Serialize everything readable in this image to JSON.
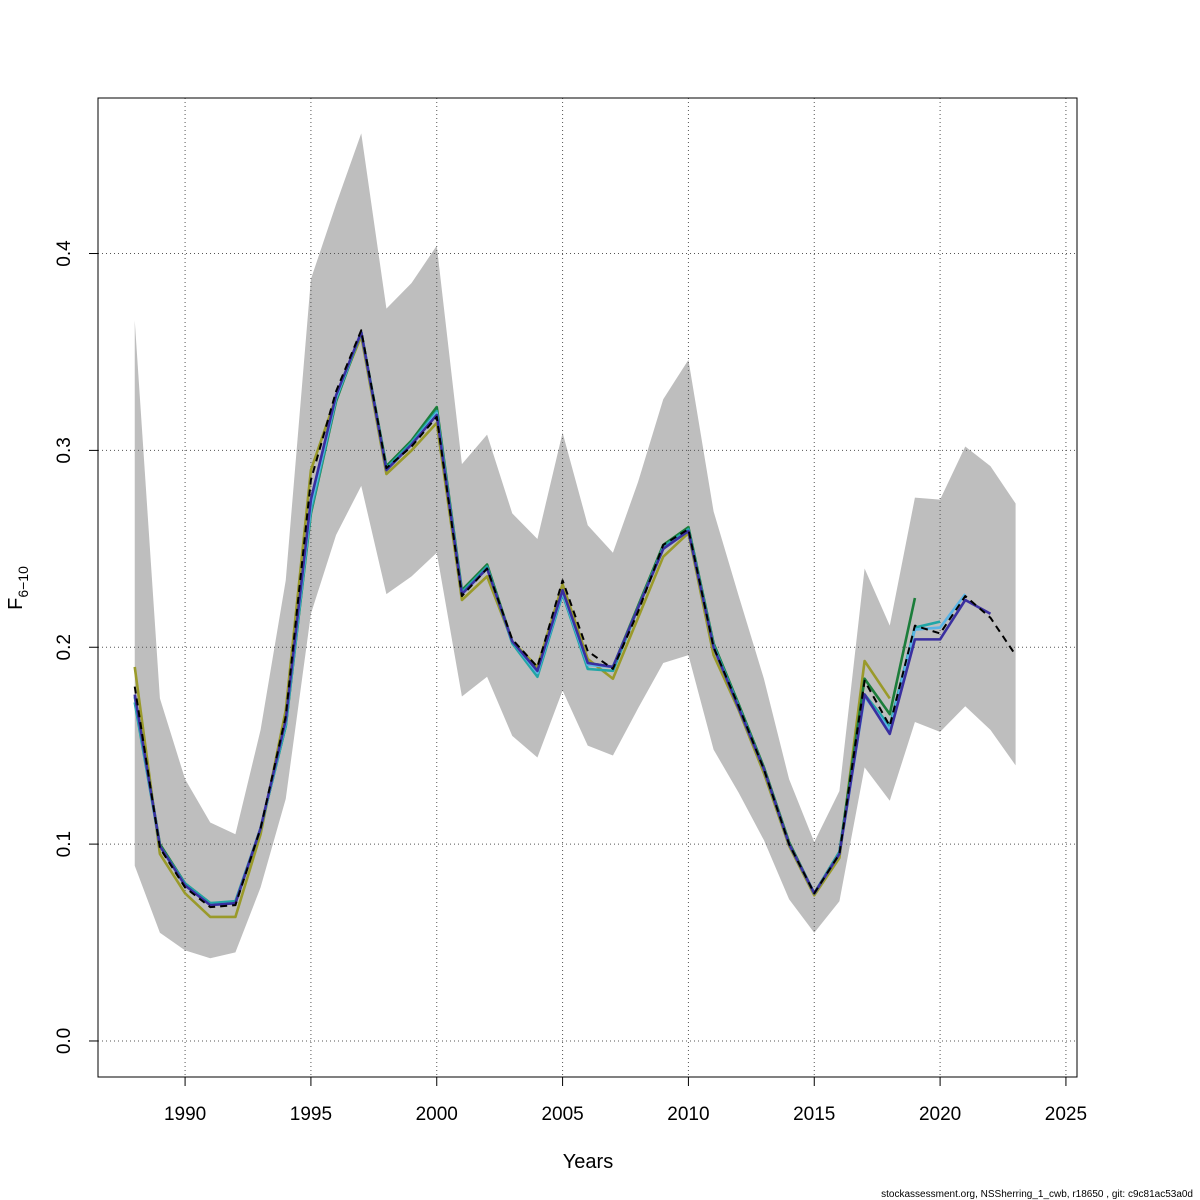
{
  "chart_data": {
    "type": "line",
    "xlabel": "Years",
    "ylabel": "F",
    "ylabel_sub": "6−10",
    "footer": "stockassessment.org, NSSherring_1_cwb, r18650 , git: c9c81ac53a0d",
    "x": [
      1988,
      1989,
      1990,
      1991,
      1992,
      1993,
      1994,
      1995,
      1996,
      1997,
      1998,
      1999,
      2000,
      2001,
      2002,
      2003,
      2004,
      2005,
      2006,
      2007,
      2008,
      2009,
      2010,
      2011,
      2012,
      2013,
      2014,
      2015,
      2016,
      2017,
      2018,
      2019,
      2020,
      2021,
      2022,
      2023
    ],
    "xlim": [
      1986.54,
      2025.44
    ],
    "ylim": [
      -0.0183,
      0.479
    ],
    "xticks": [
      1990,
      1995,
      2000,
      2005,
      2010,
      2015,
      2020,
      2025
    ],
    "yticks": [
      {
        "value": 0,
        "label": "0.0"
      },
      0.1,
      0.2,
      0.3,
      0.4
    ],
    "grid": true,
    "band": {
      "color": "#bebebe",
      "upper": [
        0.366,
        0.174,
        0.133,
        0.111,
        0.105,
        0.158,
        0.234,
        0.387,
        0.425,
        0.461,
        0.372,
        0.385,
        0.404,
        0.293,
        0.308,
        0.268,
        0.255,
        0.309,
        0.262,
        0.248,
        0.284,
        0.326,
        0.346,
        0.269,
        0.226,
        0.184,
        0.133,
        0.101,
        0.127,
        0.24,
        0.211,
        0.276,
        0.275,
        0.302,
        0.292,
        0.273
      ],
      "lower": [
        0.089,
        0.055,
        0.046,
        0.042,
        0.045,
        0.078,
        0.123,
        0.217,
        0.257,
        0.282,
        0.227,
        0.236,
        0.248,
        0.175,
        0.185,
        0.155,
        0.144,
        0.178,
        0.15,
        0.145,
        0.169,
        0.192,
        0.196,
        0.148,
        0.126,
        0.102,
        0.072,
        0.055,
        0.071,
        0.139,
        0.122,
        0.162,
        0.157,
        0.17,
        0.158,
        0.14
      ]
    },
    "series": [
      {
        "color": "#9a9a2a",
        "dashed": false,
        "values": [
          0.19,
          0.095,
          0.075,
          0.063,
          0.063,
          0.105,
          0.168,
          0.29,
          0.327,
          0.358,
          0.288,
          0.3,
          0.314,
          0.224,
          0.236,
          0.203,
          0.19,
          0.232,
          0.194,
          0.184,
          0.215,
          0.246,
          0.258,
          0.196,
          0.168,
          0.136,
          0.099,
          0.074,
          0.093,
          0.193,
          0.174,
          null,
          null,
          null,
          null,
          null
        ]
      },
      {
        "color": "#1b7d3a",
        "dashed": false,
        "values": [
          0.175,
          0.1,
          0.08,
          0.07,
          0.07,
          0.108,
          0.16,
          0.268,
          0.325,
          0.36,
          0.292,
          0.305,
          0.322,
          0.229,
          0.242,
          0.203,
          0.188,
          0.228,
          0.192,
          0.19,
          0.221,
          0.252,
          0.261,
          0.202,
          0.171,
          0.139,
          0.101,
          0.075,
          0.096,
          0.184,
          0.166,
          0.225,
          null,
          null,
          null,
          null
        ]
      },
      {
        "color": "#21a6a6",
        "dashed": false,
        "values": [
          0.172,
          0.099,
          0.08,
          0.07,
          0.071,
          0.108,
          0.16,
          0.269,
          0.326,
          0.36,
          0.291,
          0.304,
          0.32,
          0.228,
          0.241,
          0.202,
          0.185,
          0.227,
          0.189,
          0.188,
          0.22,
          0.251,
          0.26,
          0.201,
          0.17,
          0.138,
          0.1,
          0.075,
          0.096,
          0.176,
          0.16,
          0.21,
          0.213,
          null,
          null,
          null
        ]
      },
      {
        "color": "#5ab4e5",
        "dashed": false,
        "values": [
          0.175,
          0.099,
          0.079,
          0.069,
          0.07,
          0.108,
          0.162,
          0.272,
          0.327,
          0.36,
          0.29,
          0.303,
          0.319,
          0.227,
          0.24,
          0.203,
          0.187,
          0.228,
          0.191,
          0.19,
          0.22,
          0.25,
          0.259,
          0.2,
          0.169,
          0.138,
          0.1,
          0.075,
          0.095,
          0.175,
          0.158,
          0.209,
          0.21,
          0.227,
          null,
          null
        ]
      },
      {
        "color": "#3a2fa0",
        "dashed": false,
        "values": [
          0.176,
          0.099,
          0.079,
          0.069,
          0.07,
          0.108,
          0.163,
          0.275,
          0.328,
          0.36,
          0.29,
          0.303,
          0.318,
          0.227,
          0.24,
          0.203,
          0.188,
          0.229,
          0.192,
          0.19,
          0.22,
          0.25,
          0.259,
          0.2,
          0.169,
          0.138,
          0.1,
          0.075,
          0.095,
          0.176,
          0.156,
          0.204,
          0.204,
          0.224,
          0.217,
          null
        ]
      },
      {
        "color": "#000000",
        "dashed": true,
        "values": [
          0.18,
          0.098,
          0.078,
          0.068,
          0.069,
          0.108,
          0.165,
          0.285,
          0.33,
          0.361,
          0.291,
          0.302,
          0.317,
          0.226,
          0.24,
          0.204,
          0.19,
          0.234,
          0.198,
          0.189,
          0.218,
          0.252,
          0.26,
          0.2,
          0.17,
          0.138,
          0.1,
          0.075,
          0.095,
          0.183,
          0.16,
          0.211,
          0.207,
          0.226,
          0.215,
          0.196
        ]
      }
    ]
  }
}
